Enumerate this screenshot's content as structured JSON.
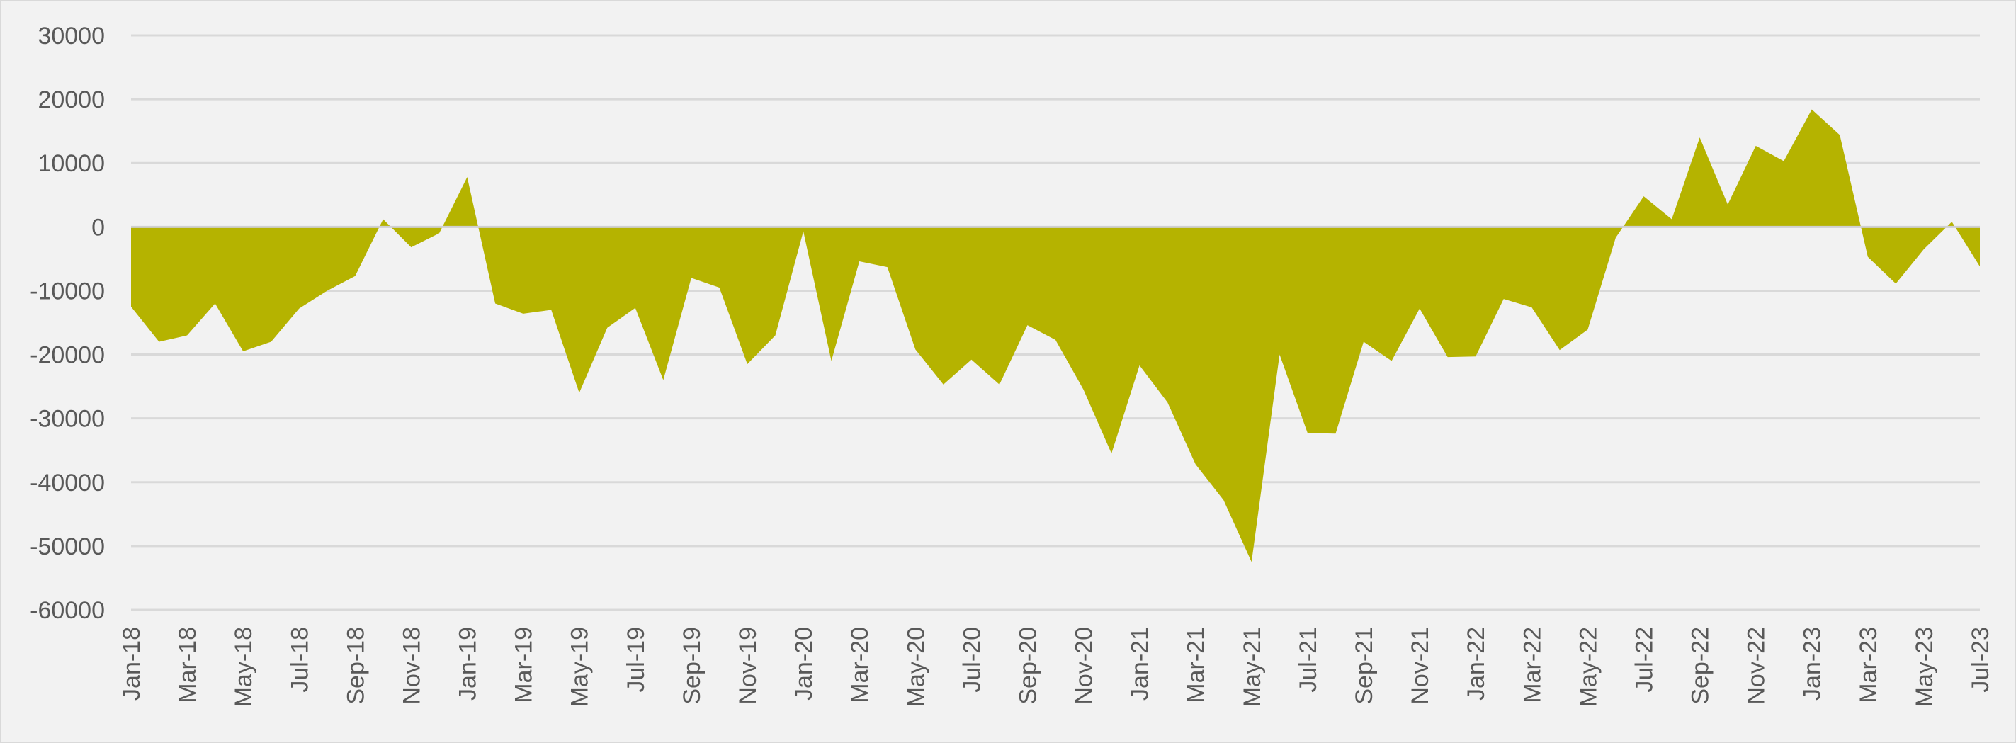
{
  "chart_data": {
    "type": "area",
    "title": "",
    "xlabel": "",
    "ylabel": "",
    "ylim": [
      -60000,
      30000
    ],
    "yticks": [
      30000,
      20000,
      10000,
      0,
      -10000,
      -20000,
      -30000,
      -40000,
      -50000,
      -60000
    ],
    "grid": true,
    "legend": "none",
    "color": "#b5b300",
    "x": [
      "Jan-18",
      "Feb-18",
      "Mar-18",
      "Apr-18",
      "May-18",
      "Jun-18",
      "Jul-18",
      "Aug-18",
      "Sep-18",
      "Oct-18",
      "Nov-18",
      "Dec-18",
      "Jan-19",
      "Feb-19",
      "Mar-19",
      "Apr-19",
      "May-19",
      "Jun-19",
      "Jul-19",
      "Aug-19",
      "Sep-19",
      "Oct-19",
      "Nov-19",
      "Dec-19",
      "Jan-20",
      "Feb-20",
      "Mar-20",
      "Apr-20",
      "May-20",
      "Jun-20",
      "Jul-20",
      "Aug-20",
      "Sep-20",
      "Oct-20",
      "Nov-20",
      "Dec-20",
      "Jan-21",
      "Feb-21",
      "Mar-21",
      "Apr-21",
      "May-21",
      "Jun-21",
      "Jul-21",
      "Aug-21",
      "Sep-21",
      "Oct-21",
      "Nov-21",
      "Dec-21",
      "Jan-22",
      "Feb-22",
      "Mar-22",
      "Apr-22",
      "May-22",
      "Jun-22",
      "Jul-22",
      "Aug-22",
      "Sep-22",
      "Oct-22",
      "Nov-22",
      "Dec-22",
      "Jan-23",
      "Feb-23",
      "Mar-23",
      "Apr-23",
      "May-23",
      "Jun-23",
      "Jul-23"
    ],
    "x_tick_labels": [
      "Jan-18",
      "Mar-18",
      "May-18",
      "Jul-18",
      "Sep-18",
      "Nov-18",
      "Jan-19",
      "Mar-19",
      "May-19",
      "Jul-19",
      "Sep-19",
      "Nov-19",
      "Jan-20",
      "Mar-20",
      "May-20",
      "Jul-20",
      "Sep-20",
      "Nov-20",
      "Jan-21",
      "Mar-21",
      "May-21",
      "Jul-21",
      "Sep-21",
      "Nov-21",
      "Jan-22",
      "Mar-22",
      "May-22",
      "Jul-22",
      "Sep-22",
      "Nov-22",
      "Jan-23",
      "Mar-23",
      "May-23",
      "Jul-23"
    ],
    "values": [
      -12500,
      -18000,
      -17000,
      -12000,
      -19500,
      -18000,
      -12800,
      -10000,
      -7700,
      1200,
      -3200,
      -1000,
      7800,
      -12000,
      -13600,
      -13000,
      -26000,
      -15800,
      -12700,
      -24000,
      -8000,
      -9500,
      -21500,
      -17000,
      -700,
      -21000,
      -5400,
      -6300,
      -19200,
      -24700,
      -20800,
      -24700,
      -15400,
      -17700,
      -25500,
      -35500,
      -21700,
      -27500,
      -37200,
      -42800,
      -52500,
      -20000,
      -32300,
      -32400,
      -18000,
      -21000,
      -12800,
      -20400,
      -20300,
      -11300,
      -12600,
      -19300,
      -16100,
      -1700,
      4800,
      1200,
      14000,
      3500,
      12700,
      10300,
      18400,
      14400,
      -4700,
      -8900,
      -3500,
      800,
      -6200
    ]
  }
}
